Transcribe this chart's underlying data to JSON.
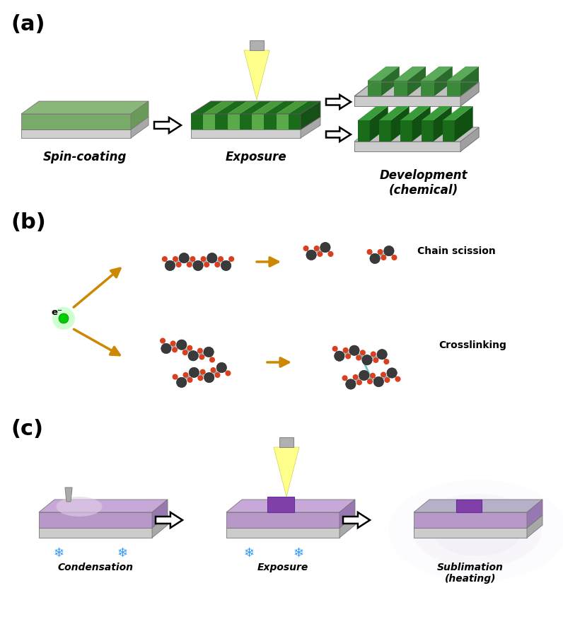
{
  "bg_color": "#ffffff",
  "label_a": "(a)",
  "label_b": "(b)",
  "label_c": "(c)",
  "label_fontsize": 22,
  "spin_coating_text": "Spin-coating",
  "exposure_text": "Exposure",
  "development_text": "Development\n(chemical)",
  "chain_scission_text": "Chain scission",
  "crosslinking_text": "Crosslinking",
  "condensation_text": "Condensation",
  "sublimation_text": "Sublimation\n(heating)",
  "exposure_c_text": "Exposure",
  "electron_text": "e⁻",
  "light_green_top": "#8ab87a",
  "light_green_front": "#7aaa6a",
  "light_green_side": "#6a9a5a",
  "dark_green": "#1a6b1a",
  "medium_green": "#2a8b2a",
  "gray_top": "#c8c8c8",
  "gray_front": "#d0d0d0",
  "gray_side": "#a8a8a8",
  "purple_top": "#c8a8d8",
  "purple_front": "#b898c8",
  "purple_side": "#a080b8",
  "purple_dark": "#8050a0",
  "arrow_color": "#cc8800",
  "cyan_bond": "#7bbccc",
  "dark_atom": "#3a3a3a",
  "red_atom": "#d84020",
  "beam_yellow": "#ffff80",
  "snowflake_color": "#3399ff"
}
